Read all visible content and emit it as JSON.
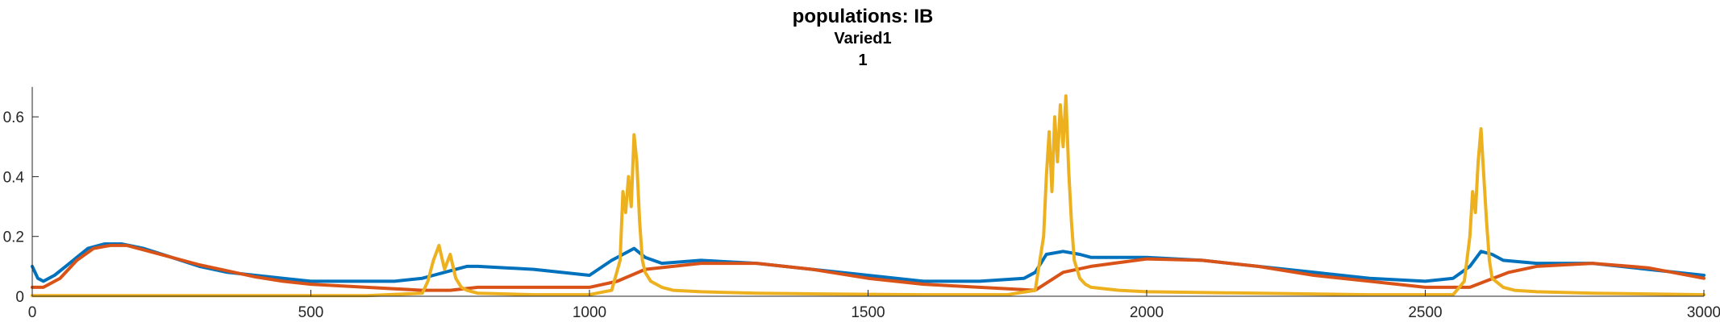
{
  "chart_data": {
    "type": "line",
    "title": "populations: IB",
    "subtitle": "Varied1",
    "subtitle2": "1",
    "xlim": [
      0,
      3000
    ],
    "ylim": [
      0,
      0.7
    ],
    "x_ticks": [
      0,
      500,
      1000,
      1500,
      2000,
      2500,
      3000
    ],
    "x_tick_labels": [
      "0",
      "500",
      "1000",
      "1500",
      "2000",
      "2500",
      "3000"
    ],
    "y_ticks": [
      0,
      0.2,
      0.4,
      0.6
    ],
    "y_tick_labels": [
      "0",
      "0.2",
      "0.4",
      "0.6"
    ],
    "grid": false,
    "colors": [
      "#0072BD",
      "#D95319",
      "#EDB120"
    ],
    "series": [
      {
        "color": "#0072BD",
        "x": [
          0,
          10,
          20,
          40,
          60,
          80,
          100,
          130,
          160,
          200,
          250,
          300,
          350,
          400,
          450,
          500,
          550,
          600,
          650,
          700,
          720,
          740,
          760,
          780,
          800,
          900,
          1000,
          1040,
          1060,
          1080,
          1100,
          1130,
          1200,
          1300,
          1400,
          1500,
          1600,
          1700,
          1780,
          1800,
          1820,
          1850,
          1880,
          1900,
          2000,
          2100,
          2200,
          2300,
          2400,
          2500,
          2550,
          2580,
          2600,
          2620,
          2640,
          2700,
          2800,
          2900,
          3000
        ],
        "values": [
          0.1,
          0.06,
          0.05,
          0.07,
          0.1,
          0.13,
          0.16,
          0.175,
          0.175,
          0.16,
          0.13,
          0.1,
          0.08,
          0.07,
          0.06,
          0.05,
          0.05,
          0.05,
          0.05,
          0.06,
          0.07,
          0.08,
          0.09,
          0.1,
          0.1,
          0.09,
          0.07,
          0.12,
          0.14,
          0.16,
          0.13,
          0.11,
          0.12,
          0.11,
          0.09,
          0.07,
          0.05,
          0.05,
          0.06,
          0.08,
          0.14,
          0.15,
          0.14,
          0.13,
          0.13,
          0.12,
          0.1,
          0.08,
          0.06,
          0.05,
          0.06,
          0.1,
          0.15,
          0.14,
          0.12,
          0.11,
          0.11,
          0.09,
          0.07
        ]
      },
      {
        "color": "#D95319",
        "x": [
          0,
          20,
          50,
          80,
          110,
          140,
          170,
          200,
          250,
          300,
          350,
          400,
          450,
          500,
          600,
          700,
          750,
          800,
          900,
          1000,
          1050,
          1100,
          1200,
          1300,
          1400,
          1500,
          1600,
          1700,
          1800,
          1850,
          1900,
          2000,
          2100,
          2200,
          2300,
          2400,
          2500,
          2580,
          2650,
          2700,
          2800,
          2900,
          3000
        ],
        "values": [
          0.03,
          0.03,
          0.06,
          0.12,
          0.16,
          0.17,
          0.17,
          0.155,
          0.13,
          0.105,
          0.085,
          0.065,
          0.05,
          0.04,
          0.03,
          0.02,
          0.02,
          0.03,
          0.03,
          0.03,
          0.05,
          0.09,
          0.11,
          0.11,
          0.09,
          0.06,
          0.04,
          0.03,
          0.02,
          0.08,
          0.1,
          0.125,
          0.12,
          0.1,
          0.07,
          0.05,
          0.03,
          0.03,
          0.08,
          0.1,
          0.11,
          0.095,
          0.06
        ]
      },
      {
        "color": "#EDB120",
        "x": [
          0,
          600,
          700,
          710,
          720,
          730,
          740,
          750,
          760,
          770,
          780,
          800,
          900,
          1000,
          1040,
          1055,
          1060,
          1065,
          1070,
          1075,
          1080,
          1085,
          1090,
          1095,
          1100,
          1110,
          1130,
          1150,
          1200,
          1300,
          1400,
          1600,
          1750,
          1800,
          1815,
          1820,
          1825,
          1830,
          1835,
          1840,
          1845,
          1850,
          1855,
          1860,
          1865,
          1870,
          1880,
          1890,
          1900,
          1950,
          2000,
          2200,
          2400,
          2550,
          2570,
          2580,
          2585,
          2590,
          2595,
          2600,
          2605,
          2610,
          2615,
          2620,
          2640,
          2660,
          2700,
          2800,
          3000
        ],
        "values": [
          0.002,
          0.002,
          0.01,
          0.05,
          0.12,
          0.17,
          0.09,
          0.14,
          0.06,
          0.03,
          0.02,
          0.01,
          0.005,
          0.005,
          0.02,
          0.12,
          0.35,
          0.28,
          0.4,
          0.3,
          0.54,
          0.45,
          0.25,
          0.12,
          0.08,
          0.05,
          0.03,
          0.02,
          0.015,
          0.01,
          0.008,
          0.005,
          0.005,
          0.02,
          0.2,
          0.4,
          0.55,
          0.35,
          0.6,
          0.45,
          0.64,
          0.5,
          0.67,
          0.42,
          0.25,
          0.12,
          0.06,
          0.04,
          0.03,
          0.02,
          0.015,
          0.01,
          0.005,
          0.005,
          0.05,
          0.2,
          0.35,
          0.28,
          0.45,
          0.56,
          0.4,
          0.25,
          0.12,
          0.06,
          0.03,
          0.02,
          0.015,
          0.01,
          0.005
        ]
      }
    ]
  }
}
